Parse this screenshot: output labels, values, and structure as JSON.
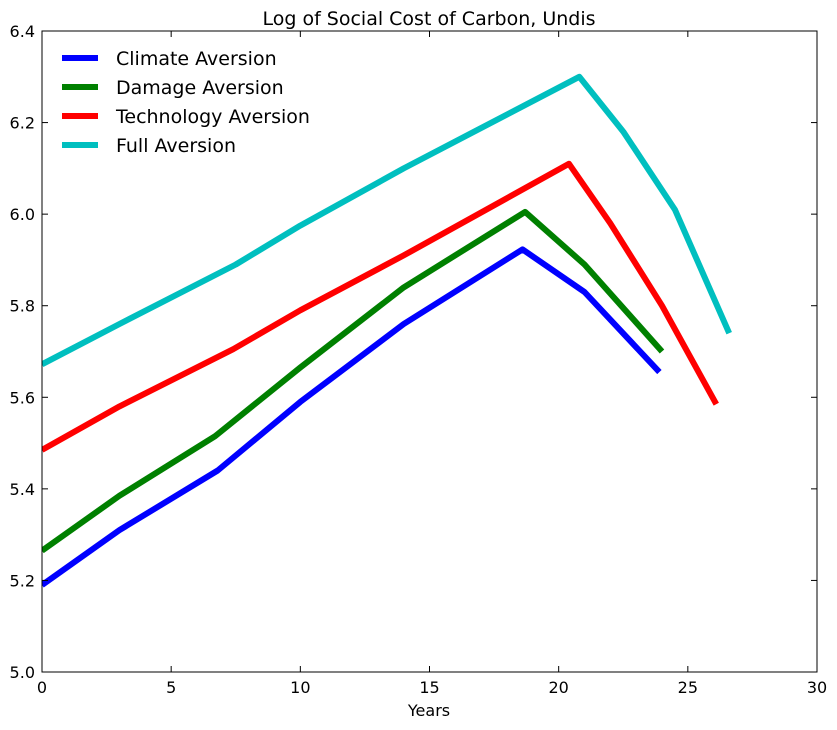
{
  "chart_data": {
    "type": "line",
    "title": "Log of Social Cost of Carbon, Undis",
    "xlabel": "Years",
    "ylabel": "",
    "xlim": [
      0,
      30
    ],
    "ylim": [
      5.0,
      6.4
    ],
    "x_ticks": [
      0,
      5,
      10,
      15,
      20,
      25,
      30
    ],
    "y_ticks": [
      5.0,
      5.2,
      5.4,
      5.6,
      5.8,
      6.0,
      6.2,
      6.4
    ],
    "x_tick_labels": [
      "0",
      "5",
      "10",
      "15",
      "20",
      "25",
      "30"
    ],
    "y_tick_labels": [
      "5.0",
      "5.2",
      "5.4",
      "5.6",
      "5.8",
      "6.0",
      "6.2",
      "6.4"
    ],
    "grid": false,
    "legend_position": "top-left",
    "series": [
      {
        "name": "Climate Aversion",
        "color": "#0000ff",
        "x": [
          0,
          3,
          6.8,
          10,
          14,
          18.6,
          21,
          23.9
        ],
        "y": [
          5.19,
          5.31,
          5.44,
          5.59,
          5.76,
          5.923,
          5.83,
          5.655
        ]
      },
      {
        "name": "Damage Aversion",
        "color": "#008000",
        "x": [
          0,
          3,
          6.7,
          10,
          14,
          18.7,
          21,
          24.0
        ],
        "y": [
          5.265,
          5.385,
          5.515,
          5.665,
          5.84,
          6.005,
          5.89,
          5.7
        ]
      },
      {
        "name": "Technology Aversion",
        "color": "#ff0000",
        "x": [
          0,
          3,
          7.4,
          10,
          14,
          20.4,
          22,
          24,
          26.1
        ],
        "y": [
          5.485,
          5.58,
          5.705,
          5.79,
          5.91,
          6.11,
          5.98,
          5.8,
          5.585
        ]
      },
      {
        "name": "Full Aversion",
        "color": "#00bfbf",
        "x": [
          0,
          3,
          7.5,
          10,
          14,
          20.8,
          22.5,
          24.5,
          26.6
        ],
        "y": [
          5.672,
          5.76,
          5.89,
          5.975,
          6.1,
          6.3,
          6.18,
          6.01,
          5.74
        ]
      }
    ]
  }
}
